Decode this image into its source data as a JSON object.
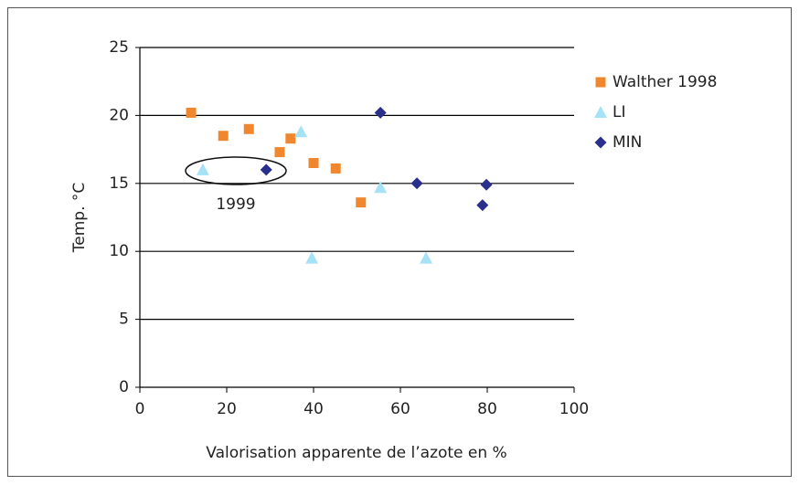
{
  "chart_data": {
    "type": "scatter",
    "xlabel": "Valorisation apparente de l’azote en %",
    "ylabel": "Temp. °C",
    "annotation": "1999",
    "xlim": [
      0,
      100
    ],
    "xticks": [
      0,
      20,
      40,
      60,
      80,
      100
    ],
    "ylim": [
      0,
      25
    ],
    "yticks": [
      0,
      5,
      10,
      15,
      20,
      25
    ],
    "grid": true,
    "legend": "right",
    "series": [
      {
        "name": "Walther 1998",
        "color": "#f0862d",
        "marker": "square",
        "x": [
          11.8,
          19.2,
          25.1,
          32.2,
          34.7,
          40.0,
          45.1,
          50.9
        ],
        "values": [
          20.2,
          18.5,
          19.0,
          17.3,
          18.3,
          16.5,
          16.1,
          13.6
        ]
      },
      {
        "name": "LI",
        "color": "#a6e2f5",
        "marker": "triangle",
        "x": [
          14.5,
          37.1,
          39.6,
          55.4,
          65.9
        ],
        "values": [
          16.0,
          18.8,
          9.5,
          14.7,
          9.5
        ]
      },
      {
        "name": "MIN",
        "color": "#2a2f8c",
        "marker": "diamond",
        "x": [
          29.1,
          55.4,
          63.8,
          79.8,
          78.9
        ],
        "values": [
          16.0,
          20.2,
          15.0,
          14.9,
          13.4
        ]
      }
    ]
  }
}
